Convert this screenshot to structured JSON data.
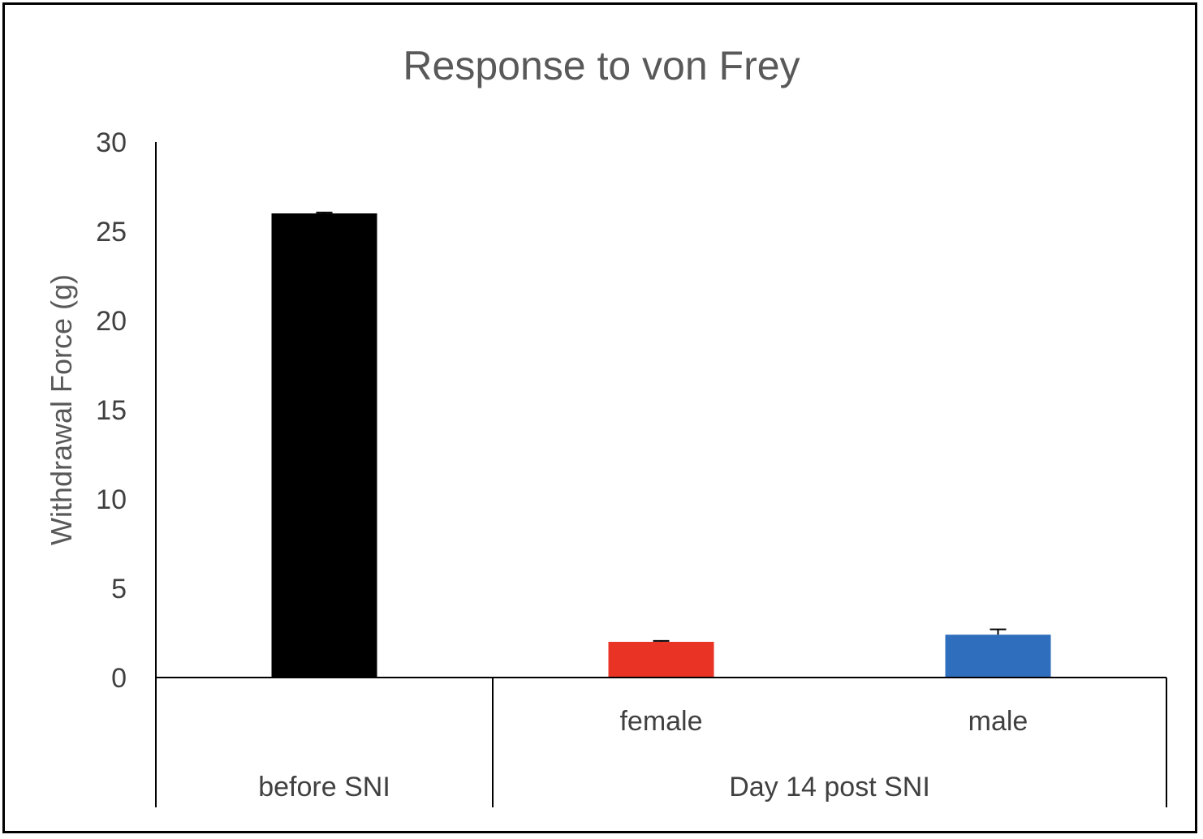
{
  "chart_data": {
    "type": "bar",
    "title": "Response to von Frey",
    "xlabel": "",
    "ylabel": "Withdrawal Force (g)",
    "ylim": [
      0,
      30
    ],
    "yticks": [
      "0",
      "5",
      "10",
      "15",
      "20",
      "25",
      "30"
    ],
    "grid": false,
    "legend": "none",
    "categories": [
      "before SNI",
      "female",
      "male"
    ],
    "category_groups": [
      {
        "label": "before SNI",
        "members": [
          "before SNI"
        ]
      },
      {
        "label": "Day 14 post SNI",
        "members": [
          "female",
          "male"
        ]
      }
    ],
    "values": [
      26.0,
      2.0,
      2.4
    ],
    "error": [
      0.05,
      0.05,
      0.3
    ],
    "colors": [
      "#000000",
      "#e83325",
      "#2f6dbd"
    ]
  }
}
